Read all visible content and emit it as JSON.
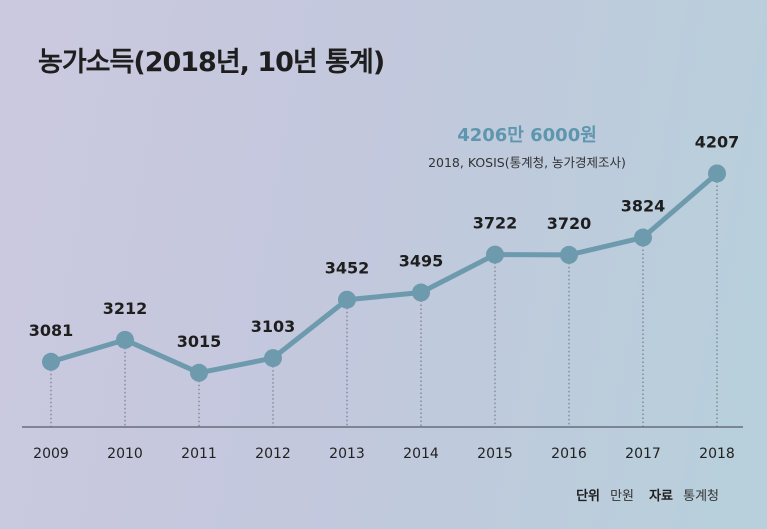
{
  "chart_data": {
    "type": "line",
    "title": "농가소득(2018년, 10년 통계)",
    "highlight": "4206만 6000원",
    "subtitle": "2018, KOSIS(통계청, 농가경제조사)",
    "categories": [
      "2009",
      "2010",
      "2011",
      "2012",
      "2013",
      "2014",
      "2015",
      "2016",
      "2017",
      "2018"
    ],
    "values": [
      3081,
      3212,
      3015,
      3103,
      3452,
      3495,
      3722,
      3720,
      3824,
      4207
    ],
    "ylim": [
      2000,
      4500
    ],
    "xlabel": "",
    "ylabel": "",
    "unit_label": "단위",
    "unit_value": "만원",
    "source_label": "자료",
    "source_value": "통계청",
    "colors": {
      "line": "#6e9aae",
      "marker": "#6e9aae",
      "highlight": "#5e96ae"
    }
  }
}
